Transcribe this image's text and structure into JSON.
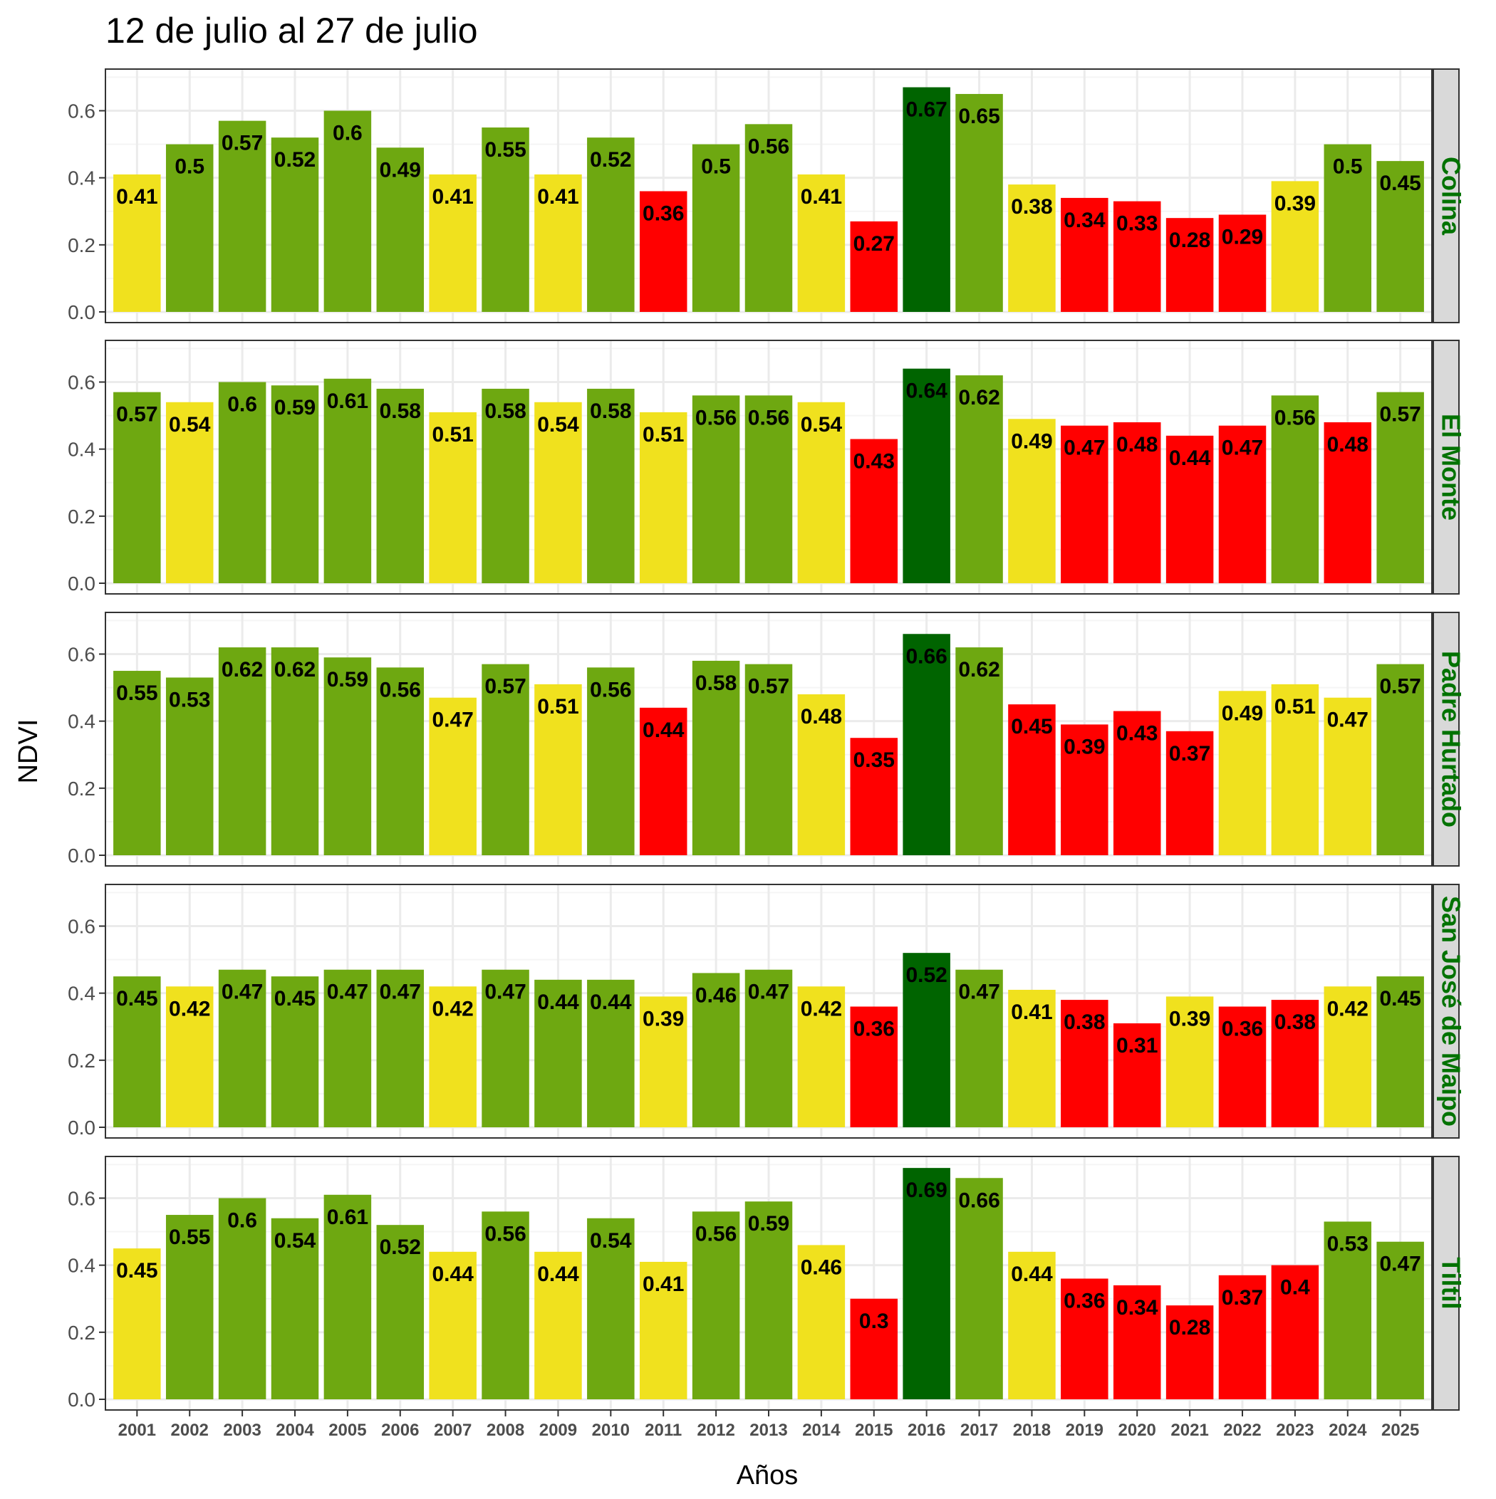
{
  "chart_data": {
    "type": "bar",
    "title": "12 de julio al 27 de julio",
    "xlabel": "Años",
    "ylabel": "NDVI",
    "ylim": [
      0,
      0.72
    ],
    "yticks": [
      "0.0",
      "0.2",
      "0.4",
      "0.6"
    ],
    "grid": true,
    "categories": [
      "2001",
      "2002",
      "2003",
      "2004",
      "2005",
      "2006",
      "2007",
      "2008",
      "2009",
      "2010",
      "2011",
      "2012",
      "2013",
      "2014",
      "2015",
      "2016",
      "2017",
      "2018",
      "2019",
      "2020",
      "2021",
      "2022",
      "2023",
      "2024",
      "2025"
    ],
    "colors": {
      "low": "#ff0000",
      "medium": "#f0e11e",
      "high": "#6ea811",
      "max": "#006400",
      "strip_background": "#d9d9d9",
      "strip_text": "#007200",
      "grid_major": "#ebebeb",
      "grid_minor": "#f5f5f5",
      "panel_border": "#333333"
    },
    "panels": [
      {
        "name": "Colina",
        "values": [
          0.41,
          0.5,
          0.57,
          0.52,
          0.6,
          0.49,
          0.41,
          0.55,
          0.41,
          0.52,
          0.36,
          0.5,
          0.56,
          0.41,
          0.27,
          0.67,
          0.65,
          0.38,
          0.34,
          0.33,
          0.28,
          0.29,
          0.39,
          0.5,
          0.45
        ],
        "labels": [
          "0.41",
          "0.5",
          "0.57",
          "0.52",
          "0.6",
          "0.49",
          "0.41",
          "0.55",
          "0.41",
          "0.52",
          "0.36",
          "0.5",
          "0.56",
          "0.41",
          "0.27",
          "0.67",
          "0.65",
          "0.38",
          "0.34",
          "0.33",
          "0.28",
          "0.29",
          "0.39",
          "0.5",
          "0.45"
        ],
        "classes": [
          "medium",
          "high",
          "high",
          "high",
          "high",
          "high",
          "medium",
          "high",
          "medium",
          "high",
          "low",
          "high",
          "high",
          "medium",
          "low",
          "max",
          "high",
          "medium",
          "low",
          "low",
          "low",
          "low",
          "medium",
          "high",
          "high"
        ]
      },
      {
        "name": "El Monte",
        "values": [
          0.57,
          0.54,
          0.6,
          0.59,
          0.61,
          0.58,
          0.51,
          0.58,
          0.54,
          0.58,
          0.51,
          0.56,
          0.56,
          0.54,
          0.43,
          0.64,
          0.62,
          0.49,
          0.47,
          0.48,
          0.44,
          0.47,
          0.56,
          0.48,
          0.57
        ],
        "labels": [
          "0.57",
          "0.54",
          "0.6",
          "0.59",
          "0.61",
          "0.58",
          "0.51",
          "0.58",
          "0.54",
          "0.58",
          "0.51",
          "0.56",
          "0.56",
          "0.54",
          "0.43",
          "0.64",
          "0.62",
          "0.49",
          "0.47",
          "0.48",
          "0.44",
          "0.47",
          "0.56",
          "0.48",
          "0.57"
        ],
        "classes": [
          "high",
          "medium",
          "high",
          "high",
          "high",
          "high",
          "medium",
          "high",
          "medium",
          "high",
          "medium",
          "high",
          "high",
          "medium",
          "low",
          "max",
          "high",
          "medium",
          "low",
          "low",
          "low",
          "low",
          "high",
          "low",
          "high"
        ]
      },
      {
        "name": "Padre Hurtado",
        "values": [
          0.55,
          0.53,
          0.62,
          0.62,
          0.59,
          0.56,
          0.47,
          0.57,
          0.51,
          0.56,
          0.44,
          0.58,
          0.57,
          0.48,
          0.35,
          0.66,
          0.62,
          0.45,
          0.39,
          0.43,
          0.37,
          0.49,
          0.51,
          0.47,
          0.57
        ],
        "labels": [
          "0.55",
          "0.53",
          "0.62",
          "0.62",
          "0.59",
          "0.56",
          "0.47",
          "0.57",
          "0.51",
          "0.56",
          "0.44",
          "0.58",
          "0.57",
          "0.48",
          "0.35",
          "0.66",
          "0.62",
          "0.45",
          "0.39",
          "0.43",
          "0.37",
          "0.49",
          "0.51",
          "0.47",
          "0.57"
        ],
        "classes": [
          "high",
          "high",
          "high",
          "high",
          "high",
          "high",
          "medium",
          "high",
          "medium",
          "high",
          "low",
          "high",
          "high",
          "medium",
          "low",
          "max",
          "high",
          "low",
          "low",
          "low",
          "low",
          "medium",
          "medium",
          "medium",
          "high"
        ]
      },
      {
        "name": "San José de Maipo",
        "values": [
          0.45,
          0.42,
          0.47,
          0.45,
          0.47,
          0.47,
          0.42,
          0.47,
          0.44,
          0.44,
          0.39,
          0.46,
          0.47,
          0.42,
          0.36,
          0.52,
          0.47,
          0.41,
          0.38,
          0.31,
          0.39,
          0.36,
          0.38,
          0.42,
          0.45
        ],
        "labels": [
          "0.45",
          "0.42",
          "0.47",
          "0.45",
          "0.47",
          "0.47",
          "0.42",
          "0.47",
          "0.44",
          "0.44",
          "0.39",
          "0.46",
          "0.47",
          "0.42",
          "0.36",
          "0.52",
          "0.47",
          "0.41",
          "0.38",
          "0.31",
          "0.39",
          "0.36",
          "0.38",
          "0.42",
          "0.45"
        ],
        "classes": [
          "high",
          "medium",
          "high",
          "high",
          "high",
          "high",
          "medium",
          "high",
          "high",
          "high",
          "medium",
          "high",
          "high",
          "medium",
          "low",
          "max",
          "high",
          "medium",
          "low",
          "low",
          "medium",
          "low",
          "low",
          "medium",
          "high"
        ]
      },
      {
        "name": "Tiltil",
        "values": [
          0.45,
          0.55,
          0.6,
          0.54,
          0.61,
          0.52,
          0.44,
          0.56,
          0.44,
          0.54,
          0.41,
          0.56,
          0.59,
          0.46,
          0.3,
          0.69,
          0.66,
          0.44,
          0.36,
          0.34,
          0.28,
          0.37,
          0.4,
          0.53,
          0.47
        ],
        "labels": [
          "0.45",
          "0.55",
          "0.6",
          "0.54",
          "0.61",
          "0.52",
          "0.44",
          "0.56",
          "0.44",
          "0.54",
          "0.41",
          "0.56",
          "0.59",
          "0.46",
          "0.3",
          "0.69",
          "0.66",
          "0.44",
          "0.36",
          "0.34",
          "0.28",
          "0.37",
          "0.4",
          "0.53",
          "0.47"
        ],
        "classes": [
          "medium",
          "high",
          "high",
          "high",
          "high",
          "high",
          "medium",
          "high",
          "medium",
          "high",
          "medium",
          "high",
          "high",
          "medium",
          "low",
          "max",
          "high",
          "medium",
          "low",
          "low",
          "low",
          "low",
          "low",
          "high",
          "high"
        ]
      }
    ]
  }
}
